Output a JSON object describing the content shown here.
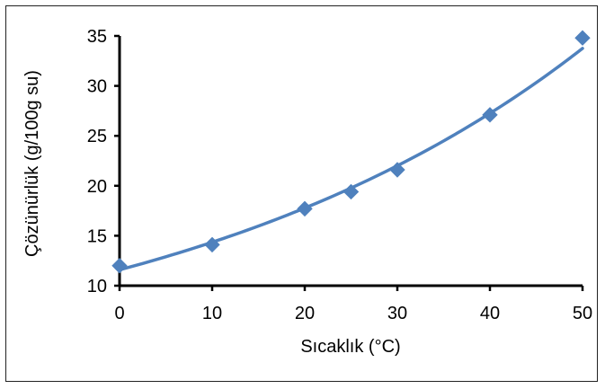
{
  "chart_data": {
    "type": "scatter",
    "xlabel": "Sıcaklık (°C)",
    "ylabel": "Çözünürlük (g/100g su)",
    "xlim": [
      0,
      50
    ],
    "ylim": [
      10,
      35
    ],
    "x_ticks": [
      "0",
      "10",
      "20",
      "30",
      "40",
      "50"
    ],
    "y_ticks": [
      "10",
      "15",
      "20",
      "25",
      "30",
      "35"
    ],
    "grid": false,
    "series": [
      {
        "marker": "diamond",
        "trendline": "exponential",
        "x": [
          0,
          10,
          20,
          25,
          30,
          40,
          50
        ],
        "y": [
          12.0,
          14.1,
          17.7,
          19.4,
          21.6,
          27.1,
          34.8
        ]
      }
    ],
    "colors": {
      "series": "#4f81bd",
      "axis": "#000000"
    }
  }
}
